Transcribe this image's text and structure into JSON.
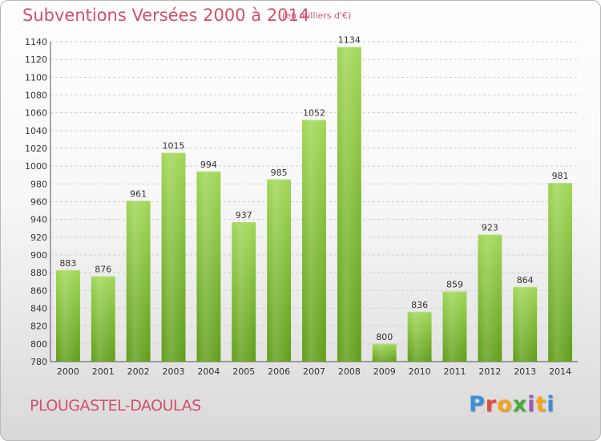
{
  "header": {
    "title": "Subventions Versées 2000 à 2014",
    "subtitle": "(en milliers d'€)"
  },
  "footer": {
    "commune": "PLOUGASTEL-DAOULAS",
    "logo_text": "Proxiti",
    "logo_colors": [
      "#3a8fd8",
      "#e64b3c",
      "#f2a51c",
      "#4aaa3c",
      "#9b59b6",
      "#f2a51c",
      "#3a8fd8"
    ]
  },
  "chart_data": {
    "type": "bar",
    "categories": [
      "2000",
      "2001",
      "2002",
      "2003",
      "2004",
      "2005",
      "2006",
      "2007",
      "2008",
      "2009",
      "2010",
      "2011",
      "2012",
      "2013",
      "2014"
    ],
    "values": [
      883,
      876,
      961,
      1015,
      994,
      937,
      985,
      1052,
      1134,
      800,
      836,
      859,
      923,
      864,
      981
    ],
    "ylim": [
      780,
      1140
    ],
    "yticks": [
      780,
      800,
      820,
      840,
      860,
      880,
      900,
      920,
      940,
      960,
      980,
      1000,
      1020,
      1040,
      1060,
      1080,
      1100,
      1120,
      1140
    ],
    "grid": true,
    "bar_color": "#8cc63f",
    "bar_color_dark": "#5e9e1a"
  }
}
